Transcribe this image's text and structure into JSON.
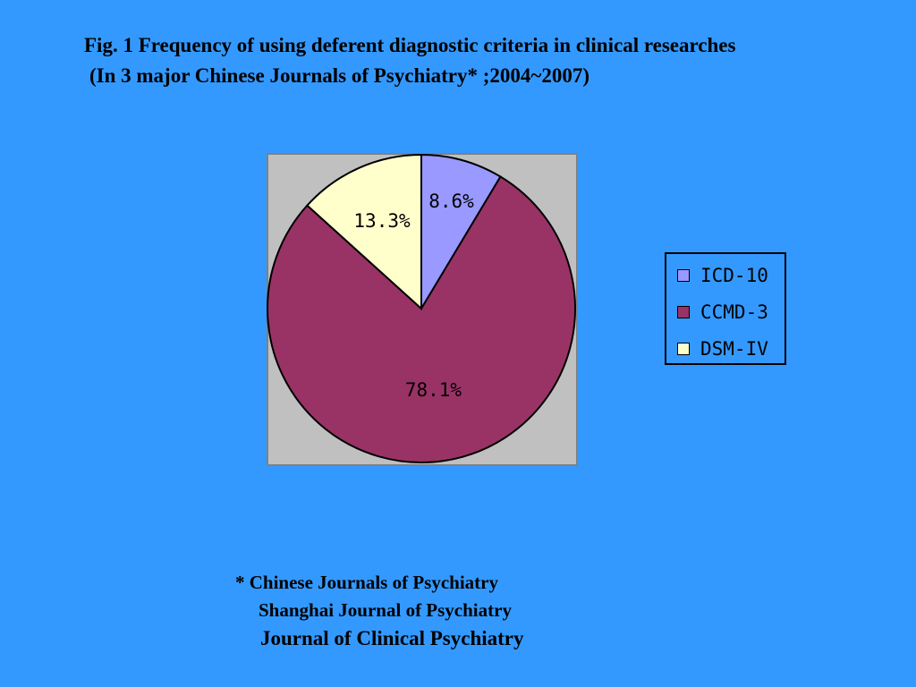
{
  "title": {
    "line1": "Fig. 1 Frequency of using deferent diagnostic criteria in clinical researches",
    "line2": "(In 3 major Chinese Journals of Psychiatry* ;2004~2007)"
  },
  "chart_data": {
    "type": "pie",
    "title": "Fig. 1 Frequency of using deferent diagnostic criteria in clinical researches (In 3 major Chinese Journals of Psychiatry* ;2004~2007)",
    "categories": [
      "ICD-10",
      "CCMD-3",
      "DSM-IV"
    ],
    "values": [
      8.6,
      78.1,
      13.3
    ],
    "labels": [
      "8.6%",
      "78.1%",
      "13.3%"
    ],
    "colors": [
      "#9999FF",
      "#993366",
      "#FFFFCC"
    ],
    "plot_background": "#C0C0C0",
    "legend_position": "right"
  },
  "footnote": {
    "line1": "* Chinese Journals of Psychiatry",
    "line2": "Shanghai Journal of Psychiatry",
    "line3": "Journal of Clinical Psychiatry"
  }
}
